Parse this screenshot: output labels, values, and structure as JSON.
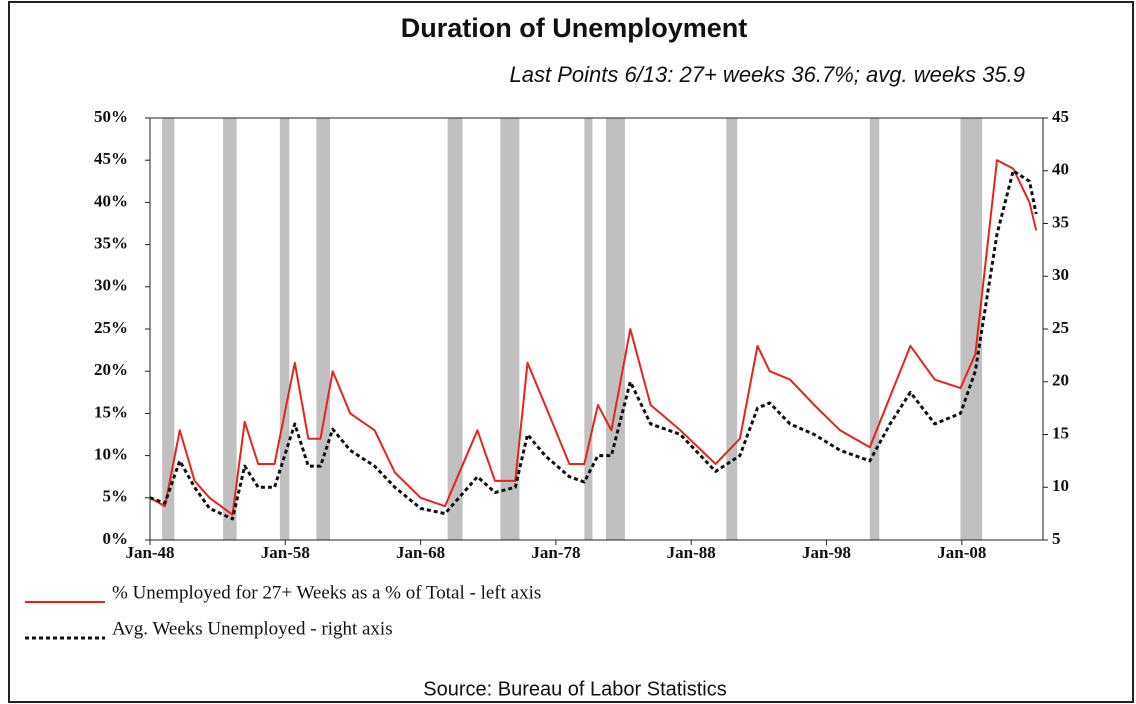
{
  "chart_data": {
    "type": "line",
    "title": "Duration of Unemployment",
    "subtitle": "Last Points 6/13: 27+ weeks 36.7%; avg. weeks 35.9",
    "source": "Source: Bureau of Labor Statistics",
    "x": [
      1948.0,
      1949.1,
      1950.2,
      1951.3,
      1952.4,
      1954.1,
      1955.0,
      1956.0,
      1957.2,
      1958.7,
      1959.7,
      1960.6,
      1961.5,
      1962.8,
      1964.6,
      1966.1,
      1968.0,
      1969.8,
      1972.2,
      1973.5,
      1975.0,
      1975.9,
      1977.2,
      1979.0,
      1980.1,
      1981.1,
      1982.1,
      1983.5,
      1985.0,
      1987.2,
      1989.8,
      1991.6,
      1992.9,
      1993.8,
      1995.3,
      1997.1,
      1999.0,
      2001.2,
      2002.7,
      2004.2,
      2006.0,
      2007.9,
      2009.0,
      2010.6,
      2011.8,
      2013.0,
      2013.5
    ],
    "series": [
      {
        "name": "% Unemployed for 27+ Weeks as a % of Total - left axis",
        "color": "#e8231b",
        "dash": "solid",
        "values": [
          5,
          4,
          13,
          7,
          5,
          3,
          14,
          9,
          9,
          21,
          12,
          12,
          20,
          15,
          13,
          8,
          5,
          4,
          13,
          7,
          7,
          21,
          16,
          9,
          9,
          16,
          13,
          25,
          16,
          13,
          9,
          12,
          23,
          20,
          19,
          16,
          13,
          11,
          17,
          23,
          19,
          18,
          22,
          45,
          44,
          40,
          36.7
        ]
      },
      {
        "name": "Avg. Weeks Unemployed - right axis",
        "color": "#111111",
        "dash": "dotted",
        "axis": "y2",
        "values": [
          9,
          8.5,
          12.5,
          10,
          8,
          7,
          12,
          10,
          10,
          16,
          12,
          12,
          15.5,
          13.5,
          12,
          10,
          8,
          7.5,
          11,
          9.5,
          10,
          15,
          13,
          11,
          10.5,
          13,
          13,
          20,
          16,
          15,
          11.5,
          13,
          17.5,
          18,
          16,
          15,
          13.5,
          12.5,
          16,
          19,
          16,
          17,
          21,
          34,
          40,
          39,
          35.9
        ]
      }
    ],
    "recessions": [
      [
        1948.9,
        1949.8
      ],
      [
        1953.4,
        1954.4
      ],
      [
        1957.6,
        1958.3
      ],
      [
        1960.3,
        1961.3
      ],
      [
        1970.0,
        1971.1
      ],
      [
        1973.9,
        1975.3
      ],
      [
        1980.1,
        1980.7
      ],
      [
        1981.7,
        1983.1
      ],
      [
        1990.6,
        1991.4
      ],
      [
        2001.2,
        2001.9
      ],
      [
        2007.9,
        2009.5
      ]
    ],
    "recession_color": "#c0c0c0",
    "xlim": [
      1948,
      2014
    ],
    "xticks": [
      {
        "value": 1948,
        "label": "Jan-48"
      },
      {
        "value": 1958,
        "label": "Jan-58"
      },
      {
        "value": 1968,
        "label": "Jan-68"
      },
      {
        "value": 1978,
        "label": "Jan-78"
      },
      {
        "value": 1988,
        "label": "Jan-88"
      },
      {
        "value": 1998,
        "label": "Jan-98"
      },
      {
        "value": 2008,
        "label": "Jan-08"
      }
    ],
    "ylim": [
      0,
      50
    ],
    "yticks": [
      {
        "value": 0,
        "label": "0%"
      },
      {
        "value": 5,
        "label": "5%"
      },
      {
        "value": 10,
        "label": "10%"
      },
      {
        "value": 15,
        "label": "15%"
      },
      {
        "value": 20,
        "label": "20%"
      },
      {
        "value": 25,
        "label": "25%"
      },
      {
        "value": 30,
        "label": "30%"
      },
      {
        "value": 35,
        "label": "35%"
      },
      {
        "value": 40,
        "label": "40%"
      },
      {
        "value": 45,
        "label": "45%"
      },
      {
        "value": 50,
        "label": "50%"
      }
    ],
    "y2lim": [
      5,
      45
    ],
    "y2ticks": [
      5,
      10,
      15,
      20,
      25,
      30,
      35,
      40,
      45
    ]
  }
}
